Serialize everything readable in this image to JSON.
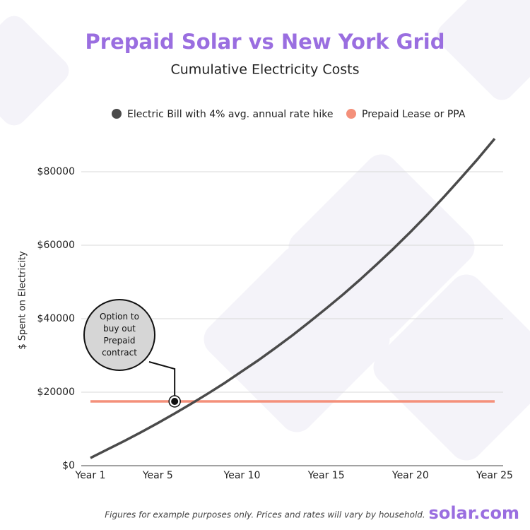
{
  "chart_data": {
    "type": "line",
    "title": "Prepaid Solar vs New York Grid",
    "subtitle": "Cumulative Electricity Costs",
    "y_label": "$ Spent on Electricity",
    "x": [
      1,
      2,
      3,
      4,
      5,
      6,
      7,
      8,
      9,
      10,
      11,
      12,
      13,
      14,
      15,
      16,
      17,
      18,
      19,
      20,
      21,
      22,
      23,
      24,
      25
    ],
    "xlim": [
      1,
      25
    ],
    "xticks": [
      {
        "value": 1,
        "label": "Year 1"
      },
      {
        "value": 5,
        "label": "Year 5"
      },
      {
        "value": 10,
        "label": "Year 10"
      },
      {
        "value": 15,
        "label": "Year 15"
      },
      {
        "value": 20,
        "label": "Year 20"
      },
      {
        "value": 25,
        "label": "Year 25"
      }
    ],
    "ylim": [
      0,
      90000
    ],
    "yticks": [
      {
        "value": 0,
        "label": "$0"
      },
      {
        "value": 20000,
        "label": "$20000"
      },
      {
        "value": 40000,
        "label": "$40000"
      },
      {
        "value": 60000,
        "label": "$60000"
      },
      {
        "value": 80000,
        "label": "$80000"
      }
    ],
    "grid": true,
    "legend": "top",
    "series": [
      {
        "name": "Electric Bill with 4% avg. annual rate hike",
        "color": "#4a4a4a",
        "values": [
          2100,
          4400,
          6700,
          9100,
          11600,
          14200,
          16900,
          19700,
          22600,
          25700,
          28800,
          32100,
          35500,
          39100,
          42800,
          46600,
          50600,
          54800,
          59100,
          63600,
          68300,
          73200,
          78300,
          83500,
          89000
        ]
      },
      {
        "name": "Prepaid Lease or PPA",
        "color": "#f4907a",
        "values": [
          17500,
          17500,
          17500,
          17500,
          17500,
          17500,
          17500,
          17500,
          17500,
          17500,
          17500,
          17500,
          17500,
          17500,
          17500,
          17500,
          17500,
          17500,
          17500,
          17500,
          17500,
          17500,
          17500,
          17500,
          17500
        ]
      }
    ],
    "annotation": {
      "text": "Option to buy out Prepaid contract",
      "x": 6
    },
    "footnote": "Figures for example purposes only. Prices and rates will vary by household.",
    "logo": "solar.com"
  }
}
